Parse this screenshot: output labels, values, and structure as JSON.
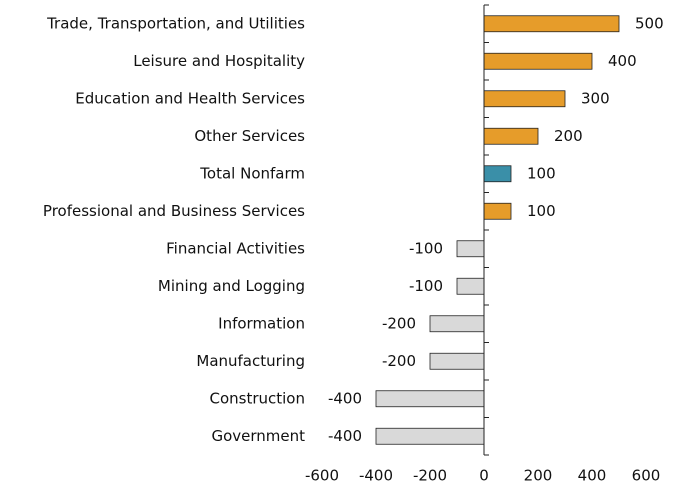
{
  "chart_data": {
    "type": "barh",
    "categories": [
      "Trade, Transportation, and Utilities",
      "Leisure and Hospitality",
      "Education and Health Services",
      "Other Services",
      "Total Nonfarm",
      "Professional and Business Services",
      "Financial Activities",
      "Mining and Logging",
      "Information",
      "Manufacturing",
      "Construction",
      "Government"
    ],
    "values": [
      500,
      400,
      300,
      200,
      100,
      100,
      -100,
      -100,
      -200,
      -200,
      -400,
      -400
    ],
    "colors": [
      "#e69c2a",
      "#e69c2a",
      "#e69c2a",
      "#e69c2a",
      "#3a8fa8",
      "#e69c2a",
      "#d9d9d9",
      "#d9d9d9",
      "#d9d9d9",
      "#d9d9d9",
      "#d9d9d9",
      "#d9d9d9"
    ],
    "xlim": [
      -600,
      600
    ],
    "xticks": [
      -600,
      -400,
      -200,
      0,
      200,
      400,
      600
    ],
    "grid": false
  }
}
